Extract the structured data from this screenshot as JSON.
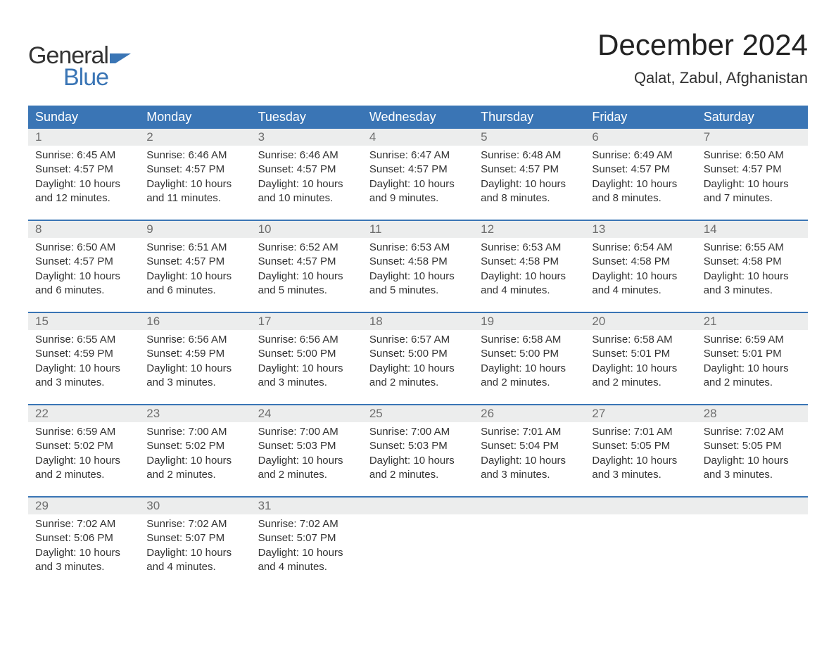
{
  "logo": {
    "text1": "General",
    "text2": "Blue",
    "flag_color": "#3a75b5",
    "text2_color": "#3a75b5",
    "text1_color": "#333333"
  },
  "title": "December 2024",
  "location": "Qalat, Zabul, Afghanistan",
  "header_bg": "#3a75b5",
  "header_text_color": "#ffffff",
  "daynum_bg": "#eceded",
  "week_border_color": "#3a75b5",
  "days_of_week": [
    "Sunday",
    "Monday",
    "Tuesday",
    "Wednesday",
    "Thursday",
    "Friday",
    "Saturday"
  ],
  "weeks": [
    {
      "days": [
        {
          "num": "1",
          "sunrise": "Sunrise: 6:45 AM",
          "sunset": "Sunset: 4:57 PM",
          "daylight1": "Daylight: 10 hours",
          "daylight2": "and 12 minutes."
        },
        {
          "num": "2",
          "sunrise": "Sunrise: 6:46 AM",
          "sunset": "Sunset: 4:57 PM",
          "daylight1": "Daylight: 10 hours",
          "daylight2": "and 11 minutes."
        },
        {
          "num": "3",
          "sunrise": "Sunrise: 6:46 AM",
          "sunset": "Sunset: 4:57 PM",
          "daylight1": "Daylight: 10 hours",
          "daylight2": "and 10 minutes."
        },
        {
          "num": "4",
          "sunrise": "Sunrise: 6:47 AM",
          "sunset": "Sunset: 4:57 PM",
          "daylight1": "Daylight: 10 hours",
          "daylight2": "and 9 minutes."
        },
        {
          "num": "5",
          "sunrise": "Sunrise: 6:48 AM",
          "sunset": "Sunset: 4:57 PM",
          "daylight1": "Daylight: 10 hours",
          "daylight2": "and 8 minutes."
        },
        {
          "num": "6",
          "sunrise": "Sunrise: 6:49 AM",
          "sunset": "Sunset: 4:57 PM",
          "daylight1": "Daylight: 10 hours",
          "daylight2": "and 8 minutes."
        },
        {
          "num": "7",
          "sunrise": "Sunrise: 6:50 AM",
          "sunset": "Sunset: 4:57 PM",
          "daylight1": "Daylight: 10 hours",
          "daylight2": "and 7 minutes."
        }
      ]
    },
    {
      "days": [
        {
          "num": "8",
          "sunrise": "Sunrise: 6:50 AM",
          "sunset": "Sunset: 4:57 PM",
          "daylight1": "Daylight: 10 hours",
          "daylight2": "and 6 minutes."
        },
        {
          "num": "9",
          "sunrise": "Sunrise: 6:51 AM",
          "sunset": "Sunset: 4:57 PM",
          "daylight1": "Daylight: 10 hours",
          "daylight2": "and 6 minutes."
        },
        {
          "num": "10",
          "sunrise": "Sunrise: 6:52 AM",
          "sunset": "Sunset: 4:57 PM",
          "daylight1": "Daylight: 10 hours",
          "daylight2": "and 5 minutes."
        },
        {
          "num": "11",
          "sunrise": "Sunrise: 6:53 AM",
          "sunset": "Sunset: 4:58 PM",
          "daylight1": "Daylight: 10 hours",
          "daylight2": "and 5 minutes."
        },
        {
          "num": "12",
          "sunrise": "Sunrise: 6:53 AM",
          "sunset": "Sunset: 4:58 PM",
          "daylight1": "Daylight: 10 hours",
          "daylight2": "and 4 minutes."
        },
        {
          "num": "13",
          "sunrise": "Sunrise: 6:54 AM",
          "sunset": "Sunset: 4:58 PM",
          "daylight1": "Daylight: 10 hours",
          "daylight2": "and 4 minutes."
        },
        {
          "num": "14",
          "sunrise": "Sunrise: 6:55 AM",
          "sunset": "Sunset: 4:58 PM",
          "daylight1": "Daylight: 10 hours",
          "daylight2": "and 3 minutes."
        }
      ]
    },
    {
      "days": [
        {
          "num": "15",
          "sunrise": "Sunrise: 6:55 AM",
          "sunset": "Sunset: 4:59 PM",
          "daylight1": "Daylight: 10 hours",
          "daylight2": "and 3 minutes."
        },
        {
          "num": "16",
          "sunrise": "Sunrise: 6:56 AM",
          "sunset": "Sunset: 4:59 PM",
          "daylight1": "Daylight: 10 hours",
          "daylight2": "and 3 minutes."
        },
        {
          "num": "17",
          "sunrise": "Sunrise: 6:56 AM",
          "sunset": "Sunset: 5:00 PM",
          "daylight1": "Daylight: 10 hours",
          "daylight2": "and 3 minutes."
        },
        {
          "num": "18",
          "sunrise": "Sunrise: 6:57 AM",
          "sunset": "Sunset: 5:00 PM",
          "daylight1": "Daylight: 10 hours",
          "daylight2": "and 2 minutes."
        },
        {
          "num": "19",
          "sunrise": "Sunrise: 6:58 AM",
          "sunset": "Sunset: 5:00 PM",
          "daylight1": "Daylight: 10 hours",
          "daylight2": "and 2 minutes."
        },
        {
          "num": "20",
          "sunrise": "Sunrise: 6:58 AM",
          "sunset": "Sunset: 5:01 PM",
          "daylight1": "Daylight: 10 hours",
          "daylight2": "and 2 minutes."
        },
        {
          "num": "21",
          "sunrise": "Sunrise: 6:59 AM",
          "sunset": "Sunset: 5:01 PM",
          "daylight1": "Daylight: 10 hours",
          "daylight2": "and 2 minutes."
        }
      ]
    },
    {
      "days": [
        {
          "num": "22",
          "sunrise": "Sunrise: 6:59 AM",
          "sunset": "Sunset: 5:02 PM",
          "daylight1": "Daylight: 10 hours",
          "daylight2": "and 2 minutes."
        },
        {
          "num": "23",
          "sunrise": "Sunrise: 7:00 AM",
          "sunset": "Sunset: 5:02 PM",
          "daylight1": "Daylight: 10 hours",
          "daylight2": "and 2 minutes."
        },
        {
          "num": "24",
          "sunrise": "Sunrise: 7:00 AM",
          "sunset": "Sunset: 5:03 PM",
          "daylight1": "Daylight: 10 hours",
          "daylight2": "and 2 minutes."
        },
        {
          "num": "25",
          "sunrise": "Sunrise: 7:00 AM",
          "sunset": "Sunset: 5:03 PM",
          "daylight1": "Daylight: 10 hours",
          "daylight2": "and 2 minutes."
        },
        {
          "num": "26",
          "sunrise": "Sunrise: 7:01 AM",
          "sunset": "Sunset: 5:04 PM",
          "daylight1": "Daylight: 10 hours",
          "daylight2": "and 3 minutes."
        },
        {
          "num": "27",
          "sunrise": "Sunrise: 7:01 AM",
          "sunset": "Sunset: 5:05 PM",
          "daylight1": "Daylight: 10 hours",
          "daylight2": "and 3 minutes."
        },
        {
          "num": "28",
          "sunrise": "Sunrise: 7:02 AM",
          "sunset": "Sunset: 5:05 PM",
          "daylight1": "Daylight: 10 hours",
          "daylight2": "and 3 minutes."
        }
      ]
    },
    {
      "days": [
        {
          "num": "29",
          "sunrise": "Sunrise: 7:02 AM",
          "sunset": "Sunset: 5:06 PM",
          "daylight1": "Daylight: 10 hours",
          "daylight2": "and 3 minutes."
        },
        {
          "num": "30",
          "sunrise": "Sunrise: 7:02 AM",
          "sunset": "Sunset: 5:07 PM",
          "daylight1": "Daylight: 10 hours",
          "daylight2": "and 4 minutes."
        },
        {
          "num": "31",
          "sunrise": "Sunrise: 7:02 AM",
          "sunset": "Sunset: 5:07 PM",
          "daylight1": "Daylight: 10 hours",
          "daylight2": "and 4 minutes."
        },
        {
          "num": "",
          "sunrise": "",
          "sunset": "",
          "daylight1": "",
          "daylight2": ""
        },
        {
          "num": "",
          "sunrise": "",
          "sunset": "",
          "daylight1": "",
          "daylight2": ""
        },
        {
          "num": "",
          "sunrise": "",
          "sunset": "",
          "daylight1": "",
          "daylight2": ""
        },
        {
          "num": "",
          "sunrise": "",
          "sunset": "",
          "daylight1": "",
          "daylight2": ""
        }
      ]
    }
  ]
}
